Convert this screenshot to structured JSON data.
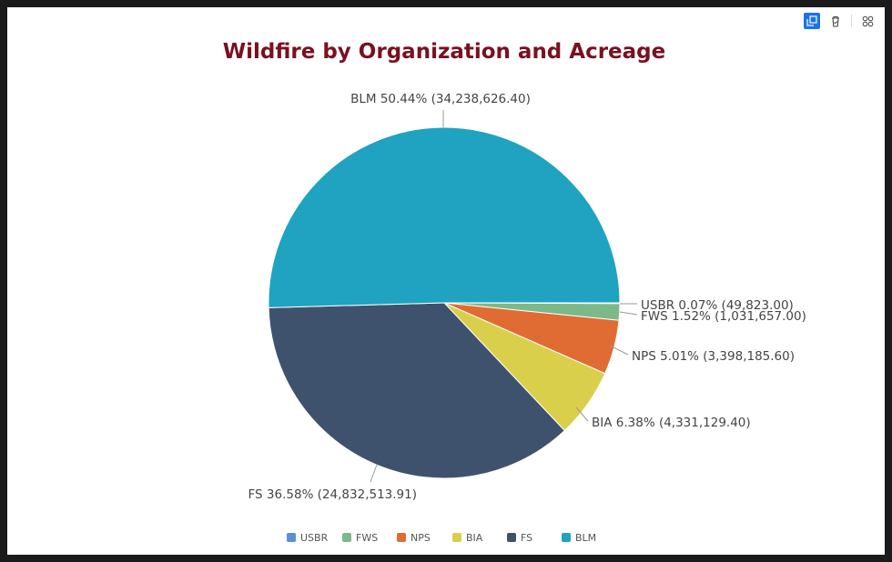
{
  "toolbar": {
    "icons": [
      "focus-mode-icon",
      "filter-icon",
      "more-options-icon"
    ]
  },
  "chart_data": {
    "type": "pie",
    "title": "Wildfire by Organization and Acreage",
    "categories": [
      "USBR",
      "FWS",
      "NPS",
      "BIA",
      "FS",
      "BLM"
    ],
    "values": [
      49823.0,
      1031657.0,
      3398185.6,
      4331129.4,
      24832513.91,
      34238626.4
    ],
    "percents": [
      "0.07%",
      "1.52%",
      "5.01%",
      "6.38%",
      "36.58%",
      "50.44%"
    ],
    "value_labels": [
      "49,823.00",
      "1,031,657.00",
      "3,398,185.60",
      "4,331,129.40",
      "24,832,513.91",
      "34,238,626.40"
    ],
    "colors": [
      "#5b8fd6",
      "#7cb98a",
      "#e06c34",
      "#dacf4b",
      "#3f526d",
      "#1fa3c0"
    ],
    "legend": [
      "USBR",
      "FWS",
      "NPS",
      "BIA",
      "FS",
      "BLM"
    ],
    "legend_placement": "bottom"
  }
}
